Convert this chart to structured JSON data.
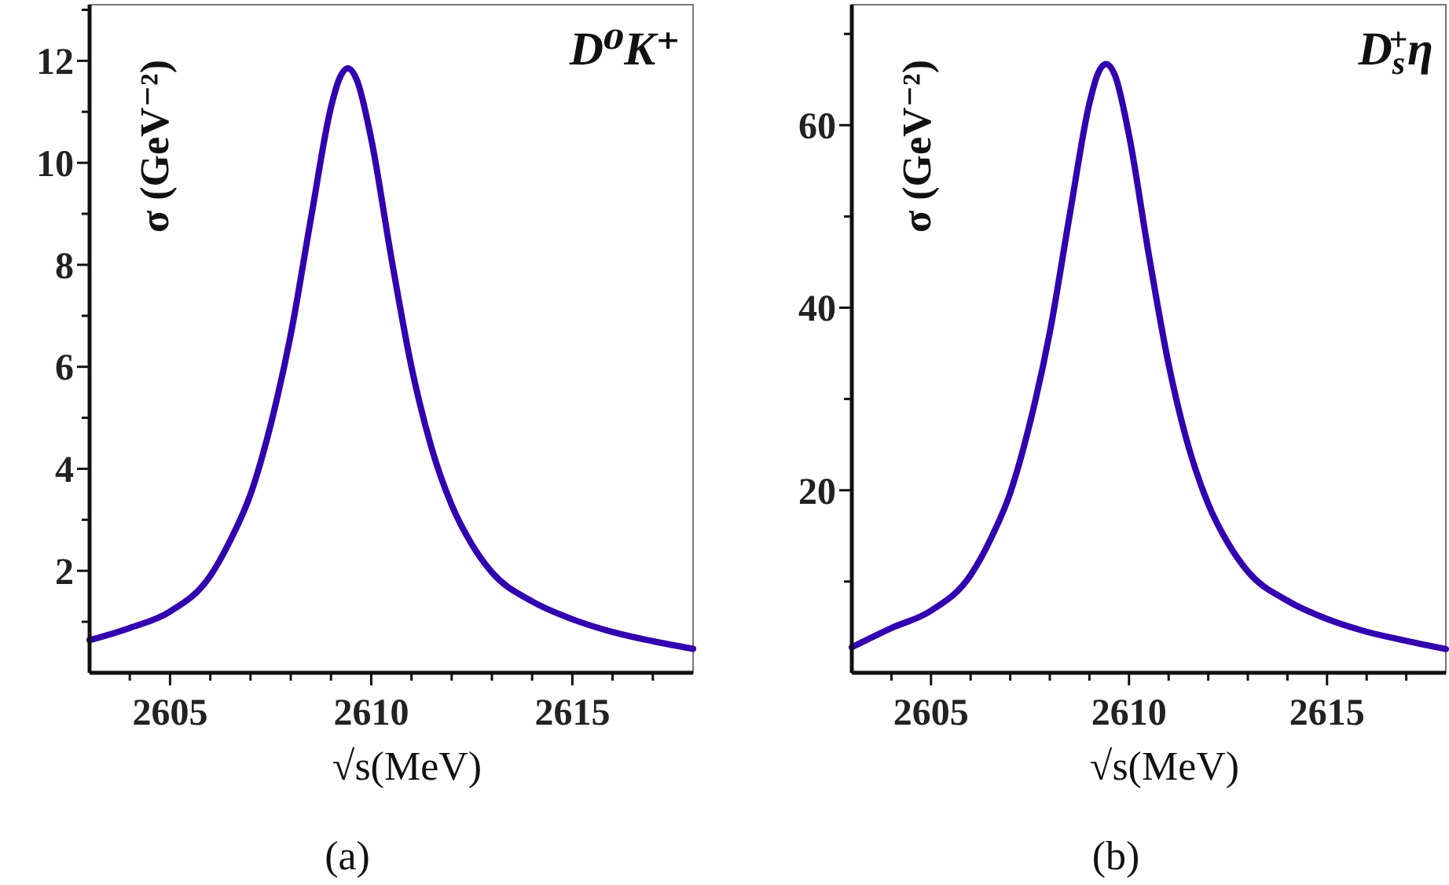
{
  "chart_data": [
    {
      "type": "line",
      "title": "D⁰K⁺",
      "xlabel": "√s(MeV)",
      "ylabel": "σ (GeV⁻²)",
      "annotations": [
        "(a)"
      ],
      "x": [
        2603,
        2604,
        2605,
        2606,
        2606.5,
        2607,
        2607.5,
        2608,
        2608.5,
        2609,
        2609.2,
        2609.42,
        2609.65,
        2610,
        2610.5,
        2611,
        2611.5,
        2612,
        2612.5,
        2613,
        2614,
        2615,
        2616,
        2617,
        2618
      ],
      "series": [
        {
          "color": "#3300b0",
          "values": [
            0.64,
            0.88,
            1.2,
            1.9,
            2.6,
            3.5,
            4.86,
            6.63,
            8.9,
            11.09,
            11.63,
            11.85,
            11.61,
            10.47,
            8.14,
            6,
            4.41,
            3.29,
            2.52,
            1.97,
            1.4,
            1.05,
            0.8,
            0.62,
            0.47
          ]
        }
      ],
      "xlim": [
        2603,
        2618
      ],
      "ylim": [
        0,
        13.1
      ],
      "xticks": [
        {
          "value": 2604,
          "label": null
        },
        2605,
        {
          "value": 2606,
          "label": null
        },
        {
          "value": 2607,
          "label": null
        },
        {
          "value": 2608,
          "label": null
        },
        {
          "value": 2609,
          "label": null
        },
        2610,
        {
          "value": 2611,
          "label": null
        },
        {
          "value": 2612,
          "label": null
        },
        {
          "value": 2613,
          "label": null
        },
        {
          "value": 2614,
          "label": null
        },
        2615,
        {
          "value": 2616,
          "label": null
        },
        {
          "value": 2617,
          "label": null
        }
      ],
      "yticks": [
        {
          "value": 1,
          "label": null
        },
        2,
        {
          "value": 3,
          "label": null
        },
        4,
        {
          "value": 5,
          "label": null
        },
        6,
        {
          "value": 7,
          "label": null
        },
        8,
        {
          "value": 9,
          "label": null
        },
        10,
        {
          "value": 11,
          "label": null
        },
        12,
        {
          "value": 13,
          "label": null
        }
      ],
      "grid": false,
      "marker": "none",
      "line_style": "solid"
    },
    {
      "type": "line",
      "title": "D$_{s}$$^{+}$η",
      "xlabel": "√s(MeV)",
      "ylabel": "σ (GeV⁻²)",
      "annotations": [
        "(b)"
      ],
      "x": [
        2603,
        2604,
        2605,
        2606,
        2606.5,
        2607,
        2607.5,
        2608,
        2608.5,
        2609,
        2609.2,
        2609.42,
        2609.65,
        2610,
        2610.5,
        2611,
        2611.5,
        2612,
        2612.5,
        2613,
        2614,
        2615,
        2616,
        2617,
        2618
      ],
      "series": [
        {
          "color": "#3300b0",
          "values": [
            2.8,
            4.9,
            6.8,
            10.7,
            14.6,
            19.7,
            27.4,
            37.3,
            50.1,
            62.4,
            65.5,
            66.7,
            65.4,
            58.9,
            45.8,
            33.8,
            24.8,
            18.5,
            14.2,
            11.1,
            7.9,
            5.9,
            4.5,
            3.5,
            2.6
          ]
        }
      ],
      "xlim": [
        2603,
        2618
      ],
      "ylim": [
        0,
        73.2
      ],
      "xticks": [
        {
          "value": 2604,
          "label": null
        },
        2605,
        {
          "value": 2606,
          "label": null
        },
        {
          "value": 2607,
          "label": null
        },
        {
          "value": 2608,
          "label": null
        },
        {
          "value": 2609,
          "label": null
        },
        2610,
        {
          "value": 2611,
          "label": null
        },
        {
          "value": 2612,
          "label": null
        },
        {
          "value": 2613,
          "label": null
        },
        {
          "value": 2614,
          "label": null
        },
        2615,
        {
          "value": 2616,
          "label": null
        },
        {
          "value": 2617,
          "label": null
        }
      ],
      "yticks": [
        {
          "value": 10,
          "label": null
        },
        20,
        {
          "value": 30,
          "label": null
        },
        40,
        {
          "value": 50,
          "label": null
        },
        60,
        {
          "value": 70,
          "label": null
        }
      ],
      "grid": false,
      "marker": "none",
      "line_style": "solid"
    }
  ]
}
